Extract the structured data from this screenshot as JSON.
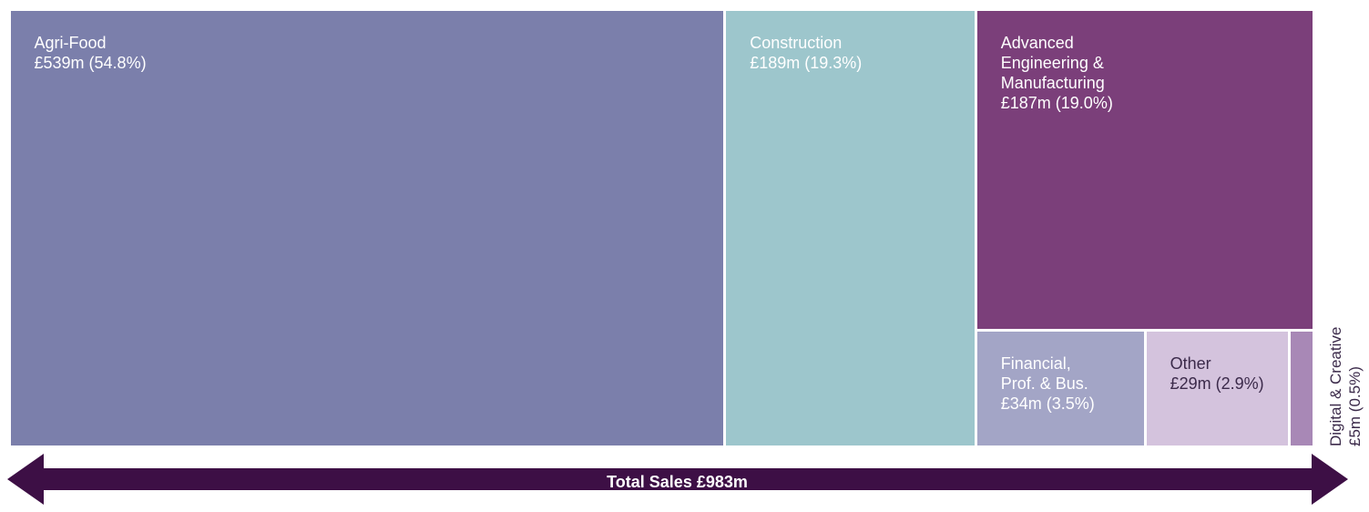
{
  "chart_data": {
    "type": "treemap",
    "unit": "£m",
    "total_label": "Total Sales £983m",
    "items": [
      {
        "name": "Agri-Food",
        "value_label": "£539m (54.8%)",
        "value": 539,
        "percent": 54.8,
        "color": "#7b7fab"
      },
      {
        "name": "Construction",
        "value_label": "£189m (19.3%)",
        "value": 189,
        "percent": 19.3,
        "color": "#9dc6cc"
      },
      {
        "name": "Advanced\nEngineering &\nManufacturing",
        "value_label": "£187m (19.0%)",
        "value": 187,
        "percent": 19.0,
        "color": "#7b3f7a"
      },
      {
        "name": "Financial,\nProf. & Bus.",
        "value_label": "£34m (3.5%)",
        "value": 34,
        "percent": 3.5,
        "color": "#a3a5c6"
      },
      {
        "name": "Other",
        "value_label": "£29m (2.9%)",
        "value": 29,
        "percent": 2.9,
        "color": "#d4c3dd"
      },
      {
        "name": "Digital & Creative",
        "value_label": "£5m (0.5%)",
        "value": 5,
        "percent": 0.5,
        "color": "#a888b6"
      }
    ],
    "arrow_color": "#3d0f45"
  }
}
